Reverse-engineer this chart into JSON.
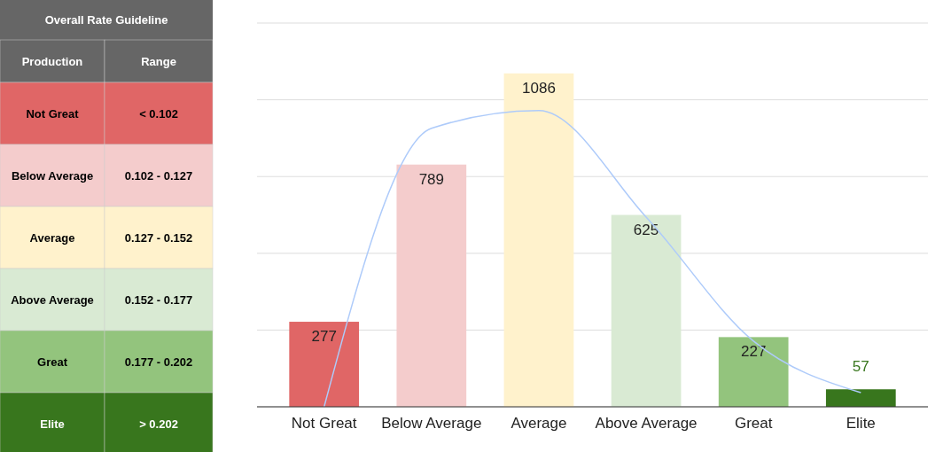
{
  "chart_data": [
    {
      "type": "other",
      "title": "Overall Rate Guideline",
      "categories": [
        "Production",
        "Not Great",
        "Below Average",
        "Average",
        "Above Average",
        "Great",
        "Elite"
      ],
      "annotations": [
        "Range",
        "< 0.102",
        "0.102 - 0.127",
        "0.127 - 0.152",
        "0.152 - 0.177",
        "0.177 - 0.202",
        "> 0.202"
      ],
      "colors": [
        "#666666",
        "#e06666",
        "#f4cccc",
        "#fff2cc",
        "#d9ead3",
        "#93c47d",
        "#38761d"
      ]
    },
    {
      "type": "bar",
      "categories": [
        "Not Great",
        "Below Average",
        "Average",
        "Above Average",
        "Great",
        "Elite"
      ],
      "series": [
        {
          "type": "bar",
          "values": [
            277,
            789,
            1086,
            625,
            227,
            57
          ],
          "value_labels": [
            "277",
            "789",
            "1086",
            "625",
            "227",
            "57"
          ],
          "colors": [
            "#e06666",
            "#f4cccc",
            "#fff2cc",
            "#d9ead3",
            "#93c47d",
            "#38761d"
          ]
        },
        {
          "type": "line",
          "color": "#aecbfa",
          "values": [
            0,
            907,
            965,
            618,
            214,
            46
          ]
        }
      ],
      "ylim": [
        0,
        1250
      ],
      "yticks": [
        {
          "value": 0,
          "label": null
        },
        {
          "value": 250,
          "label": null
        },
        {
          "value": 500,
          "label": null
        },
        {
          "value": 750,
          "label": null
        },
        {
          "value": 1000,
          "label": null
        },
        {
          "value": 1250,
          "label": null
        }
      ],
      "grid": "y",
      "tick_labels": "x"
    }
  ]
}
